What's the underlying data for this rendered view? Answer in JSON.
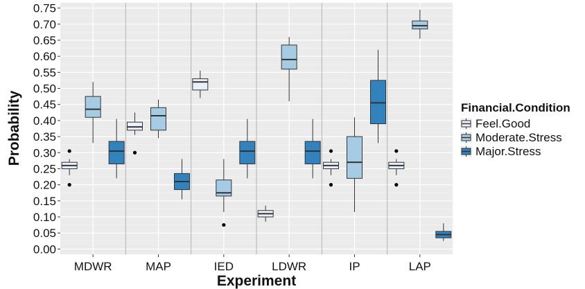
{
  "chart_data": {
    "type": "boxplot",
    "xlabel": "Experiment",
    "ylabel": "Probability",
    "ylim": [
      0.0,
      0.75
    ],
    "y_ticks": [
      "0.00",
      "0.05",
      "0.10",
      "0.15",
      "0.20",
      "0.25",
      "0.30",
      "0.35",
      "0.40",
      "0.45",
      "0.50",
      "0.55",
      "0.60",
      "0.65",
      "0.70",
      "0.75"
    ],
    "categories": [
      "MDWR",
      "MAP",
      "IED",
      "LDWR",
      "IP",
      "LAP"
    ],
    "grid": true,
    "legend": {
      "title": "Financial.Condition",
      "position": "right"
    },
    "series": [
      {
        "name": "Feel.Good",
        "color": "#e8f1f9",
        "boxes": [
          {
            "min": 0.23,
            "q1": 0.25,
            "median": 0.26,
            "q3": 0.27,
            "max": 0.28,
            "outliers": [
              0.2,
              0.305
            ]
          },
          {
            "min": 0.355,
            "q1": 0.37,
            "median": 0.38,
            "q3": 0.395,
            "max": 0.425,
            "outliers": [
              0.3
            ]
          },
          {
            "min": 0.47,
            "q1": 0.495,
            "median": 0.52,
            "q3": 0.53,
            "max": 0.555,
            "outliers": []
          },
          {
            "min": 0.085,
            "q1": 0.1,
            "median": 0.11,
            "q3": 0.12,
            "max": 0.135,
            "outliers": []
          },
          {
            "min": 0.23,
            "q1": 0.25,
            "median": 0.26,
            "q3": 0.27,
            "max": 0.28,
            "outliers": [
              0.2,
              0.305
            ]
          },
          {
            "min": 0.23,
            "q1": 0.25,
            "median": 0.26,
            "q3": 0.27,
            "max": 0.28,
            "outliers": [
              0.2,
              0.305
            ]
          }
        ]
      },
      {
        "name": "Moderate.Stress",
        "color": "#a6cce4",
        "boxes": [
          {
            "min": 0.33,
            "q1": 0.41,
            "median": 0.435,
            "q3": 0.475,
            "max": 0.52,
            "outliers": []
          },
          {
            "min": 0.345,
            "q1": 0.37,
            "median": 0.415,
            "q3": 0.44,
            "max": 0.465,
            "outliers": []
          },
          {
            "min": 0.115,
            "q1": 0.165,
            "median": 0.175,
            "q3": 0.215,
            "max": 0.28,
            "outliers": [
              0.075
            ]
          },
          {
            "min": 0.46,
            "q1": 0.56,
            "median": 0.59,
            "q3": 0.635,
            "max": 0.66,
            "outliers": []
          },
          {
            "min": 0.115,
            "q1": 0.22,
            "median": 0.27,
            "q3": 0.35,
            "max": 0.41,
            "outliers": []
          },
          {
            "min": 0.655,
            "q1": 0.685,
            "median": 0.695,
            "q3": 0.71,
            "max": 0.745,
            "outliers": []
          }
        ]
      },
      {
        "name": "Major.Stress",
        "color": "#3182bd",
        "boxes": [
          {
            "min": 0.22,
            "q1": 0.265,
            "median": 0.305,
            "q3": 0.335,
            "max": 0.405,
            "outliers": []
          },
          {
            "min": 0.155,
            "q1": 0.185,
            "median": 0.21,
            "q3": 0.235,
            "max": 0.28,
            "outliers": []
          },
          {
            "min": 0.22,
            "q1": 0.265,
            "median": 0.305,
            "q3": 0.335,
            "max": 0.405,
            "outliers": []
          },
          {
            "min": 0.22,
            "q1": 0.265,
            "median": 0.305,
            "q3": 0.335,
            "max": 0.405,
            "outliers": []
          },
          {
            "min": 0.33,
            "q1": 0.39,
            "median": 0.455,
            "q3": 0.525,
            "max": 0.62,
            "outliers": []
          },
          {
            "min": 0.025,
            "q1": 0.035,
            "median": 0.045,
            "q3": 0.055,
            "max": 0.08,
            "outliers": []
          }
        ]
      }
    ]
  }
}
